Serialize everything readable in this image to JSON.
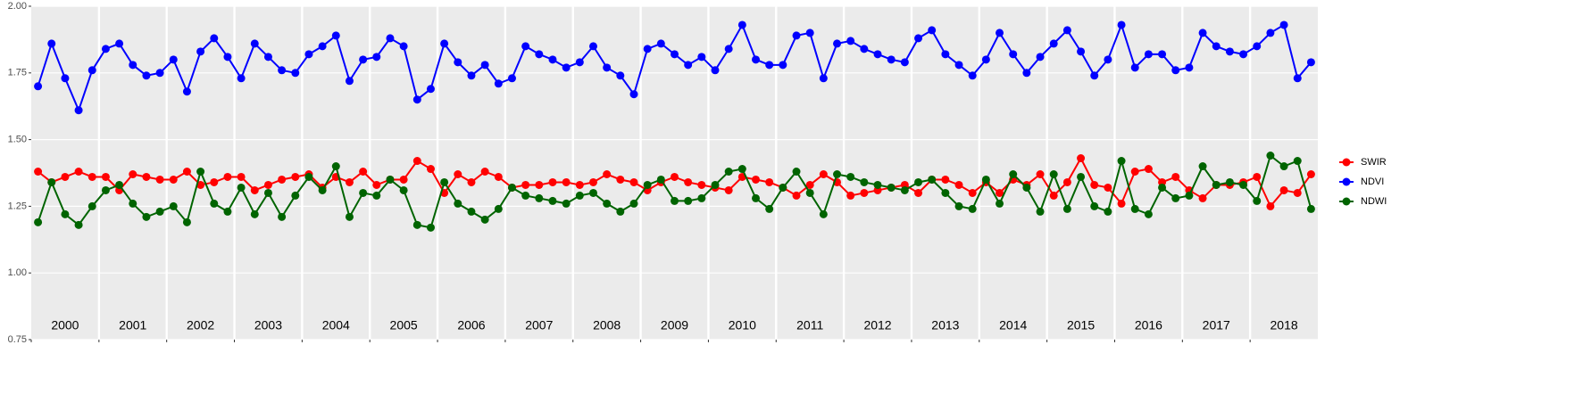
{
  "chart_data": {
    "type": "line",
    "x": [
      2000.1,
      2000.3,
      2000.5,
      2000.7,
      2000.9,
      2001.1,
      2001.3,
      2001.5,
      2001.7,
      2001.9,
      2002.1,
      2002.3,
      2002.5,
      2002.7,
      2002.9,
      2003.1,
      2003.3,
      2003.5,
      2003.7,
      2003.9,
      2004.1,
      2004.3,
      2004.5,
      2004.7,
      2004.9,
      2005.1,
      2005.3,
      2005.5,
      2005.7,
      2005.9,
      2006.1,
      2006.3,
      2006.5,
      2006.7,
      2006.9,
      2007.1,
      2007.3,
      2007.5,
      2007.7,
      2007.9,
      2008.1,
      2008.3,
      2008.5,
      2008.7,
      2008.9,
      2009.1,
      2009.3,
      2009.5,
      2009.7,
      2009.9,
      2010.1,
      2010.3,
      2010.5,
      2010.7,
      2010.9,
      2011.1,
      2011.3,
      2011.5,
      2011.7,
      2011.9,
      2012.1,
      2012.3,
      2012.5,
      2012.7,
      2012.9,
      2013.1,
      2013.3,
      2013.5,
      2013.7,
      2013.9,
      2014.1,
      2014.3,
      2014.5,
      2014.7,
      2014.9,
      2015.1,
      2015.3,
      2015.5,
      2015.7,
      2015.9,
      2016.1,
      2016.3,
      2016.5,
      2016.7,
      2016.9,
      2017.1,
      2017.3,
      2017.5,
      2017.7,
      2017.9,
      2018.1,
      2018.3,
      2018.5,
      2018.7,
      2018.9
    ],
    "series": [
      {
        "name": "SWIR",
        "color": "#ff0000",
        "values": [
          1.38,
          1.34,
          1.36,
          1.38,
          1.36,
          1.36,
          1.31,
          1.37,
          1.36,
          1.35,
          1.35,
          1.38,
          1.33,
          1.34,
          1.36,
          1.36,
          1.31,
          1.33,
          1.35,
          1.36,
          1.37,
          1.32,
          1.36,
          1.34,
          1.38,
          1.33,
          1.35,
          1.35,
          1.42,
          1.39,
          1.3,
          1.37,
          1.34,
          1.38,
          1.36,
          1.32,
          1.33,
          1.33,
          1.34,
          1.34,
          1.33,
          1.34,
          1.37,
          1.35,
          1.34,
          1.31,
          1.34,
          1.36,
          1.34,
          1.33,
          1.32,
          1.31,
          1.36,
          1.35,
          1.34,
          1.32,
          1.29,
          1.33,
          1.37,
          1.34,
          1.29,
          1.3,
          1.31,
          1.32,
          1.33,
          1.3,
          1.35,
          1.35,
          1.33,
          1.3,
          1.34,
          1.3,
          1.35,
          1.33,
          1.37,
          1.29,
          1.34,
          1.43,
          1.33,
          1.32,
          1.26,
          1.38,
          1.39,
          1.34,
          1.36,
          1.31,
          1.28,
          1.33,
          1.33,
          1.34,
          1.36,
          1.25,
          1.31,
          1.3,
          1.37
        ]
      },
      {
        "name": "NDVI",
        "color": "#0000ff",
        "values": [
          1.7,
          1.86,
          1.73,
          1.61,
          1.76,
          1.84,
          1.86,
          1.78,
          1.74,
          1.75,
          1.8,
          1.68,
          1.83,
          1.88,
          1.81,
          1.73,
          1.86,
          1.81,
          1.76,
          1.75,
          1.82,
          1.85,
          1.89,
          1.72,
          1.8,
          1.81,
          1.88,
          1.85,
          1.65,
          1.69,
          1.86,
          1.79,
          1.74,
          1.78,
          1.71,
          1.73,
          1.85,
          1.82,
          1.8,
          1.77,
          1.79,
          1.85,
          1.77,
          1.74,
          1.67,
          1.84,
          1.86,
          1.82,
          1.78,
          1.81,
          1.76,
          1.84,
          1.93,
          1.8,
          1.78,
          1.78,
          1.89,
          1.9,
          1.73,
          1.86,
          1.87,
          1.84,
          1.82,
          1.8,
          1.79,
          1.88,
          1.91,
          1.82,
          1.78,
          1.74,
          1.8,
          1.9,
          1.82,
          1.75,
          1.81,
          1.86,
          1.91,
          1.83,
          1.74,
          1.8,
          1.93,
          1.77,
          1.82,
          1.82,
          1.76,
          1.77,
          1.9,
          1.85,
          1.83,
          1.82,
          1.85,
          1.9,
          1.93,
          1.73,
          1.79
        ]
      },
      {
        "name": "NDWI",
        "color": "#006400",
        "values": [
          1.19,
          1.34,
          1.22,
          1.18,
          1.25,
          1.31,
          1.33,
          1.26,
          1.21,
          1.23,
          1.25,
          1.19,
          1.38,
          1.26,
          1.23,
          1.32,
          1.22,
          1.3,
          1.21,
          1.29,
          1.36,
          1.31,
          1.4,
          1.21,
          1.3,
          1.29,
          1.35,
          1.31,
          1.18,
          1.17,
          1.34,
          1.26,
          1.23,
          1.2,
          1.24,
          1.32,
          1.29,
          1.28,
          1.27,
          1.26,
          1.29,
          1.3,
          1.26,
          1.23,
          1.26,
          1.33,
          1.35,
          1.27,
          1.27,
          1.28,
          1.33,
          1.38,
          1.39,
          1.28,
          1.24,
          1.32,
          1.38,
          1.3,
          1.22,
          1.37,
          1.36,
          1.34,
          1.33,
          1.32,
          1.31,
          1.34,
          1.35,
          1.3,
          1.25,
          1.24,
          1.35,
          1.26,
          1.37,
          1.32,
          1.23,
          1.37,
          1.24,
          1.36,
          1.25,
          1.23,
          1.42,
          1.24,
          1.22,
          1.32,
          1.28,
          1.29,
          1.4,
          1.33,
          1.34,
          1.33,
          1.27,
          1.44,
          1.4,
          1.42,
          1.24
        ]
      }
    ],
    "xlim": [
      2000,
      2019
    ],
    "xticks": [
      {
        "value": 2000,
        "label": "2000"
      },
      {
        "value": 2001,
        "label": "2001"
      },
      {
        "value": 2002,
        "label": "2002"
      },
      {
        "value": 2003,
        "label": "2003"
      },
      {
        "value": 2004,
        "label": "2004"
      },
      {
        "value": 2005,
        "label": "2005"
      },
      {
        "value": 2006,
        "label": "2006"
      },
      {
        "value": 2007,
        "label": "2007"
      },
      {
        "value": 2008,
        "label": "2008"
      },
      {
        "value": 2009,
        "label": "2009"
      },
      {
        "value": 2010,
        "label": "2010"
      },
      {
        "value": 2011,
        "label": "2011"
      },
      {
        "value": 2012,
        "label": "2012"
      },
      {
        "value": 2013,
        "label": "2013"
      },
      {
        "value": 2014,
        "label": "2014"
      },
      {
        "value": 2015,
        "label": "2015"
      },
      {
        "value": 2016,
        "label": "2016"
      },
      {
        "value": 2017,
        "label": "2017"
      },
      {
        "value": 2018,
        "label": "2018"
      }
    ],
    "ylim": [
      0.75,
      2.0
    ],
    "yticks": [
      {
        "value": 0.75,
        "label": "0.75"
      },
      {
        "value": 1.0,
        "label": "1.00"
      },
      {
        "value": 1.25,
        "label": "1.25"
      },
      {
        "value": 1.5,
        "label": "1.50"
      },
      {
        "value": 1.75,
        "label": "1.75"
      },
      {
        "value": 2.0,
        "label": "2.00"
      }
    ],
    "grid": true,
    "legend": "right"
  }
}
